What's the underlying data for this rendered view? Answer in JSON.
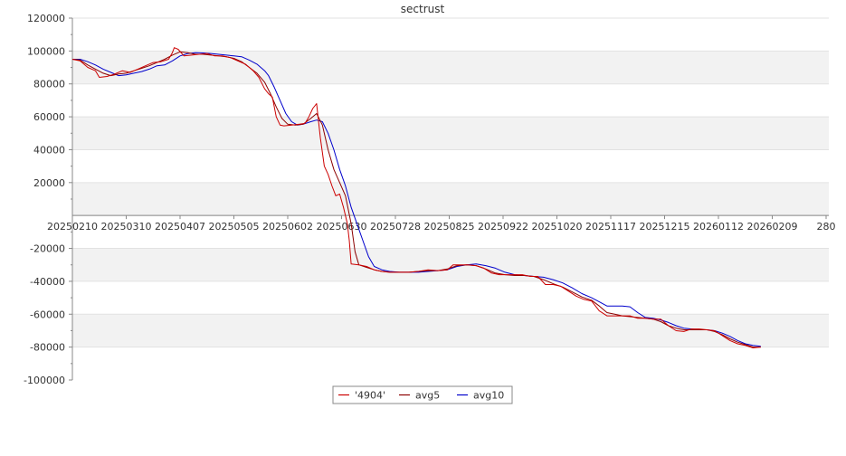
{
  "chart_data": {
    "type": "line",
    "title": "sectrust",
    "xlabel": "",
    "ylabel": "",
    "ylim": [
      -100000,
      120000
    ],
    "yticks": [
      120000,
      100000,
      80000,
      60000,
      40000,
      20000,
      -20000,
      -40000,
      -60000,
      -80000,
      -100000
    ],
    "ytick_labels": [
      "120000",
      "100000",
      "80000",
      "60000",
      "40000",
      "20000",
      "-20000",
      "-40000",
      "-60000",
      "-80000",
      "-100000"
    ],
    "xticks": [
      "20250210",
      "20250310",
      "20250407",
      "20250505",
      "20250602",
      "20250630",
      "20250728",
      "20250825",
      "20250922",
      "20251020",
      "20251117",
      "20251215",
      "20260112",
      "20260209",
      "280"
    ],
    "x_day_offset_of_ticks": [
      0,
      28,
      56,
      84,
      112,
      140,
      168,
      196,
      224,
      252,
      280,
      308,
      336,
      364,
      392
    ],
    "grid": "horizontal alternating bands",
    "legend_position": "bottom-center",
    "series": [
      {
        "name": "'4904'",
        "color": "#cc0000",
        "points": [
          [
            0,
            95000
          ],
          [
            4,
            94000
          ],
          [
            8,
            90000
          ],
          [
            12,
            88000
          ],
          [
            14,
            84000
          ],
          [
            18,
            84500
          ],
          [
            22,
            86000
          ],
          [
            26,
            88000
          ],
          [
            30,
            87000
          ],
          [
            34,
            89000
          ],
          [
            38,
            91000
          ],
          [
            42,
            93000
          ],
          [
            46,
            93500
          ],
          [
            50,
            95000
          ],
          [
            52,
            99000
          ],
          [
            53,
            102000
          ],
          [
            55,
            101000
          ],
          [
            58,
            97000
          ],
          [
            62,
            97500
          ],
          [
            66,
            98000
          ],
          [
            70,
            98500
          ],
          [
            74,
            97000
          ],
          [
            78,
            97000
          ],
          [
            82,
            96000
          ],
          [
            86,
            94000
          ],
          [
            90,
            92000
          ],
          [
            94,
            88000
          ],
          [
            97,
            84000
          ],
          [
            100,
            77000
          ],
          [
            102,
            74000
          ],
          [
            104,
            72000
          ],
          [
            106,
            60000
          ],
          [
            108,
            55000
          ],
          [
            110,
            54500
          ],
          [
            114,
            55000
          ],
          [
            118,
            55500
          ],
          [
            121,
            56000
          ],
          [
            123,
            60000
          ],
          [
            125,
            65000
          ],
          [
            127,
            68000
          ],
          [
            129,
            47000
          ],
          [
            131,
            30000
          ],
          [
            133,
            25000
          ],
          [
            135,
            18000
          ],
          [
            137,
            12000
          ],
          [
            139,
            13000
          ],
          [
            141,
            5000
          ],
          [
            143,
            -5000
          ],
          [
            144,
            -15000
          ],
          [
            145,
            -29500
          ],
          [
            149,
            -30000
          ],
          [
            153,
            -31000
          ],
          [
            157,
            -33000
          ],
          [
            161,
            -34000
          ],
          [
            165,
            -34500
          ],
          [
            170,
            -34500
          ],
          [
            175,
            -34500
          ],
          [
            180,
            -34000
          ],
          [
            185,
            -33000
          ],
          [
            190,
            -33500
          ],
          [
            195,
            -33000
          ],
          [
            198,
            -30000
          ],
          [
            202,
            -30000
          ],
          [
            206,
            -30000
          ],
          [
            210,
            -30500
          ],
          [
            214,
            -32000
          ],
          [
            218,
            -35000
          ],
          [
            222,
            -36000
          ],
          [
            226,
            -36000
          ],
          [
            230,
            -36000
          ],
          [
            234,
            -36000
          ],
          [
            238,
            -37000
          ],
          [
            242,
            -37000
          ],
          [
            246,
            -42000
          ],
          [
            250,
            -42000
          ],
          [
            254,
            -43000
          ],
          [
            258,
            -46000
          ],
          [
            262,
            -49000
          ],
          [
            266,
            -51000
          ],
          [
            270,
            -52000
          ],
          [
            274,
            -58000
          ],
          [
            278,
            -61000
          ],
          [
            282,
            -61000
          ],
          [
            286,
            -61000
          ],
          [
            290,
            -61000
          ],
          [
            294,
            -62500
          ],
          [
            298,
            -62500
          ],
          [
            302,
            -63000
          ],
          [
            306,
            -63000
          ],
          [
            310,
            -67000
          ],
          [
            314,
            -70000
          ],
          [
            318,
            -70500
          ],
          [
            322,
            -69000
          ],
          [
            326,
            -69000
          ],
          [
            330,
            -69500
          ],
          [
            334,
            -70000
          ],
          [
            338,
            -73000
          ],
          [
            342,
            -76000
          ],
          [
            346,
            -78000
          ],
          [
            350,
            -79000
          ],
          [
            354,
            -80500
          ],
          [
            358,
            -80000
          ]
        ]
      },
      {
        "name": "avg5",
        "color": "#8b0000",
        "points": [
          [
            0,
            95000
          ],
          [
            4,
            94500
          ],
          [
            8,
            91500
          ],
          [
            12,
            89000
          ],
          [
            16,
            86500
          ],
          [
            20,
            85000
          ],
          [
            24,
            86000
          ],
          [
            28,
            86500
          ],
          [
            32,
            88000
          ],
          [
            36,
            89500
          ],
          [
            40,
            91000
          ],
          [
            44,
            93000
          ],
          [
            48,
            95000
          ],
          [
            52,
            97500
          ],
          [
            56,
            99500
          ],
          [
            60,
            99000
          ],
          [
            64,
            98000
          ],
          [
            68,
            98000
          ],
          [
            72,
            97500
          ],
          [
            76,
            97000
          ],
          [
            80,
            96500
          ],
          [
            84,
            95500
          ],
          [
            88,
            93500
          ],
          [
            92,
            90000
          ],
          [
            96,
            86500
          ],
          [
            100,
            81000
          ],
          [
            103,
            74000
          ],
          [
            106,
            66000
          ],
          [
            109,
            59000
          ],
          [
            112,
            55500
          ],
          [
            116,
            55000
          ],
          [
            120,
            55500
          ],
          [
            124,
            59000
          ],
          [
            127,
            62000
          ],
          [
            130,
            55000
          ],
          [
            133,
            40000
          ],
          [
            136,
            28000
          ],
          [
            139,
            20000
          ],
          [
            142,
            12000
          ],
          [
            145,
            -5000
          ],
          [
            147,
            -22000
          ],
          [
            149,
            -30000
          ],
          [
            153,
            -31500
          ],
          [
            157,
            -33000
          ],
          [
            161,
            -34000
          ],
          [
            165,
            -34500
          ],
          [
            170,
            -34500
          ],
          [
            175,
            -34500
          ],
          [
            180,
            -34000
          ],
          [
            185,
            -33500
          ],
          [
            190,
            -33500
          ],
          [
            195,
            -32500
          ],
          [
            200,
            -30500
          ],
          [
            205,
            -30000
          ],
          [
            210,
            -30500
          ],
          [
            215,
            -32500
          ],
          [
            220,
            -35000
          ],
          [
            225,
            -36000
          ],
          [
            230,
            -36500
          ],
          [
            235,
            -36500
          ],
          [
            240,
            -37000
          ],
          [
            245,
            -39000
          ],
          [
            250,
            -41500
          ],
          [
            255,
            -43500
          ],
          [
            260,
            -46500
          ],
          [
            265,
            -49500
          ],
          [
            270,
            -51500
          ],
          [
            274,
            -55000
          ],
          [
            278,
            -59000
          ],
          [
            282,
            -60000
          ],
          [
            286,
            -61000
          ],
          [
            290,
            -61500
          ],
          [
            294,
            -62000
          ],
          [
            298,
            -62500
          ],
          [
            302,
            -63000
          ],
          [
            306,
            -64500
          ],
          [
            310,
            -67000
          ],
          [
            314,
            -68500
          ],
          [
            318,
            -69500
          ],
          [
            322,
            -69500
          ],
          [
            326,
            -69500
          ],
          [
            330,
            -69500
          ],
          [
            334,
            -70500
          ],
          [
            338,
            -72500
          ],
          [
            342,
            -75000
          ],
          [
            346,
            -77000
          ],
          [
            350,
            -78500
          ],
          [
            354,
            -80000
          ],
          [
            358,
            -80000
          ]
        ]
      },
      {
        "name": "avg10",
        "color": "#0000cc",
        "points": [
          [
            0,
            95000
          ],
          [
            4,
            95000
          ],
          [
            8,
            93500
          ],
          [
            12,
            91500
          ],
          [
            16,
            89000
          ],
          [
            20,
            87000
          ],
          [
            24,
            85000
          ],
          [
            28,
            85500
          ],
          [
            32,
            86500
          ],
          [
            36,
            87500
          ],
          [
            40,
            89000
          ],
          [
            44,
            91000
          ],
          [
            48,
            91500
          ],
          [
            52,
            94000
          ],
          [
            56,
            97000
          ],
          [
            60,
            98500
          ],
          [
            64,
            99000
          ],
          [
            68,
            98800
          ],
          [
            72,
            98500
          ],
          [
            76,
            98000
          ],
          [
            80,
            97500
          ],
          [
            84,
            97000
          ],
          [
            88,
            96500
          ],
          [
            92,
            94500
          ],
          [
            96,
            92000
          ],
          [
            100,
            88000
          ],
          [
            102,
            85000
          ],
          [
            105,
            78000
          ],
          [
            108,
            70000
          ],
          [
            111,
            62000
          ],
          [
            114,
            57000
          ],
          [
            117,
            55000
          ],
          [
            120,
            55500
          ],
          [
            124,
            57000
          ],
          [
            127,
            58000
          ],
          [
            130,
            57000
          ],
          [
            133,
            50000
          ],
          [
            136,
            40000
          ],
          [
            139,
            28000
          ],
          [
            142,
            18000
          ],
          [
            145,
            5000
          ],
          [
            148,
            -5000
          ],
          [
            151,
            -15000
          ],
          [
            154,
            -25000
          ],
          [
            157,
            -31000
          ],
          [
            161,
            -33000
          ],
          [
            165,
            -34000
          ],
          [
            170,
            -34500
          ],
          [
            175,
            -34500
          ],
          [
            180,
            -34500
          ],
          [
            185,
            -34000
          ],
          [
            190,
            -33500
          ],
          [
            195,
            -33000
          ],
          [
            200,
            -31000
          ],
          [
            205,
            -30000
          ],
          [
            210,
            -29500
          ],
          [
            215,
            -30500
          ],
          [
            220,
            -32000
          ],
          [
            225,
            -34500
          ],
          [
            230,
            -36000
          ],
          [
            235,
            -36500
          ],
          [
            240,
            -37000
          ],
          [
            245,
            -37500
          ],
          [
            250,
            -39000
          ],
          [
            255,
            -41000
          ],
          [
            260,
            -44000
          ],
          [
            265,
            -47500
          ],
          [
            270,
            -50000
          ],
          [
            274,
            -52500
          ],
          [
            278,
            -55000
          ],
          [
            282,
            -55000
          ],
          [
            286,
            -55000
          ],
          [
            290,
            -55500
          ],
          [
            294,
            -59000
          ],
          [
            298,
            -62000
          ],
          [
            302,
            -62500
          ],
          [
            306,
            -63500
          ],
          [
            310,
            -65000
          ],
          [
            314,
            -67000
          ],
          [
            318,
            -68500
          ],
          [
            322,
            -69000
          ],
          [
            326,
            -69500
          ],
          [
            330,
            -69500
          ],
          [
            334,
            -70000
          ],
          [
            338,
            -71500
          ],
          [
            342,
            -73500
          ],
          [
            346,
            -76000
          ],
          [
            350,
            -78000
          ],
          [
            354,
            -79000
          ],
          [
            358,
            -79500
          ]
        ]
      }
    ]
  }
}
